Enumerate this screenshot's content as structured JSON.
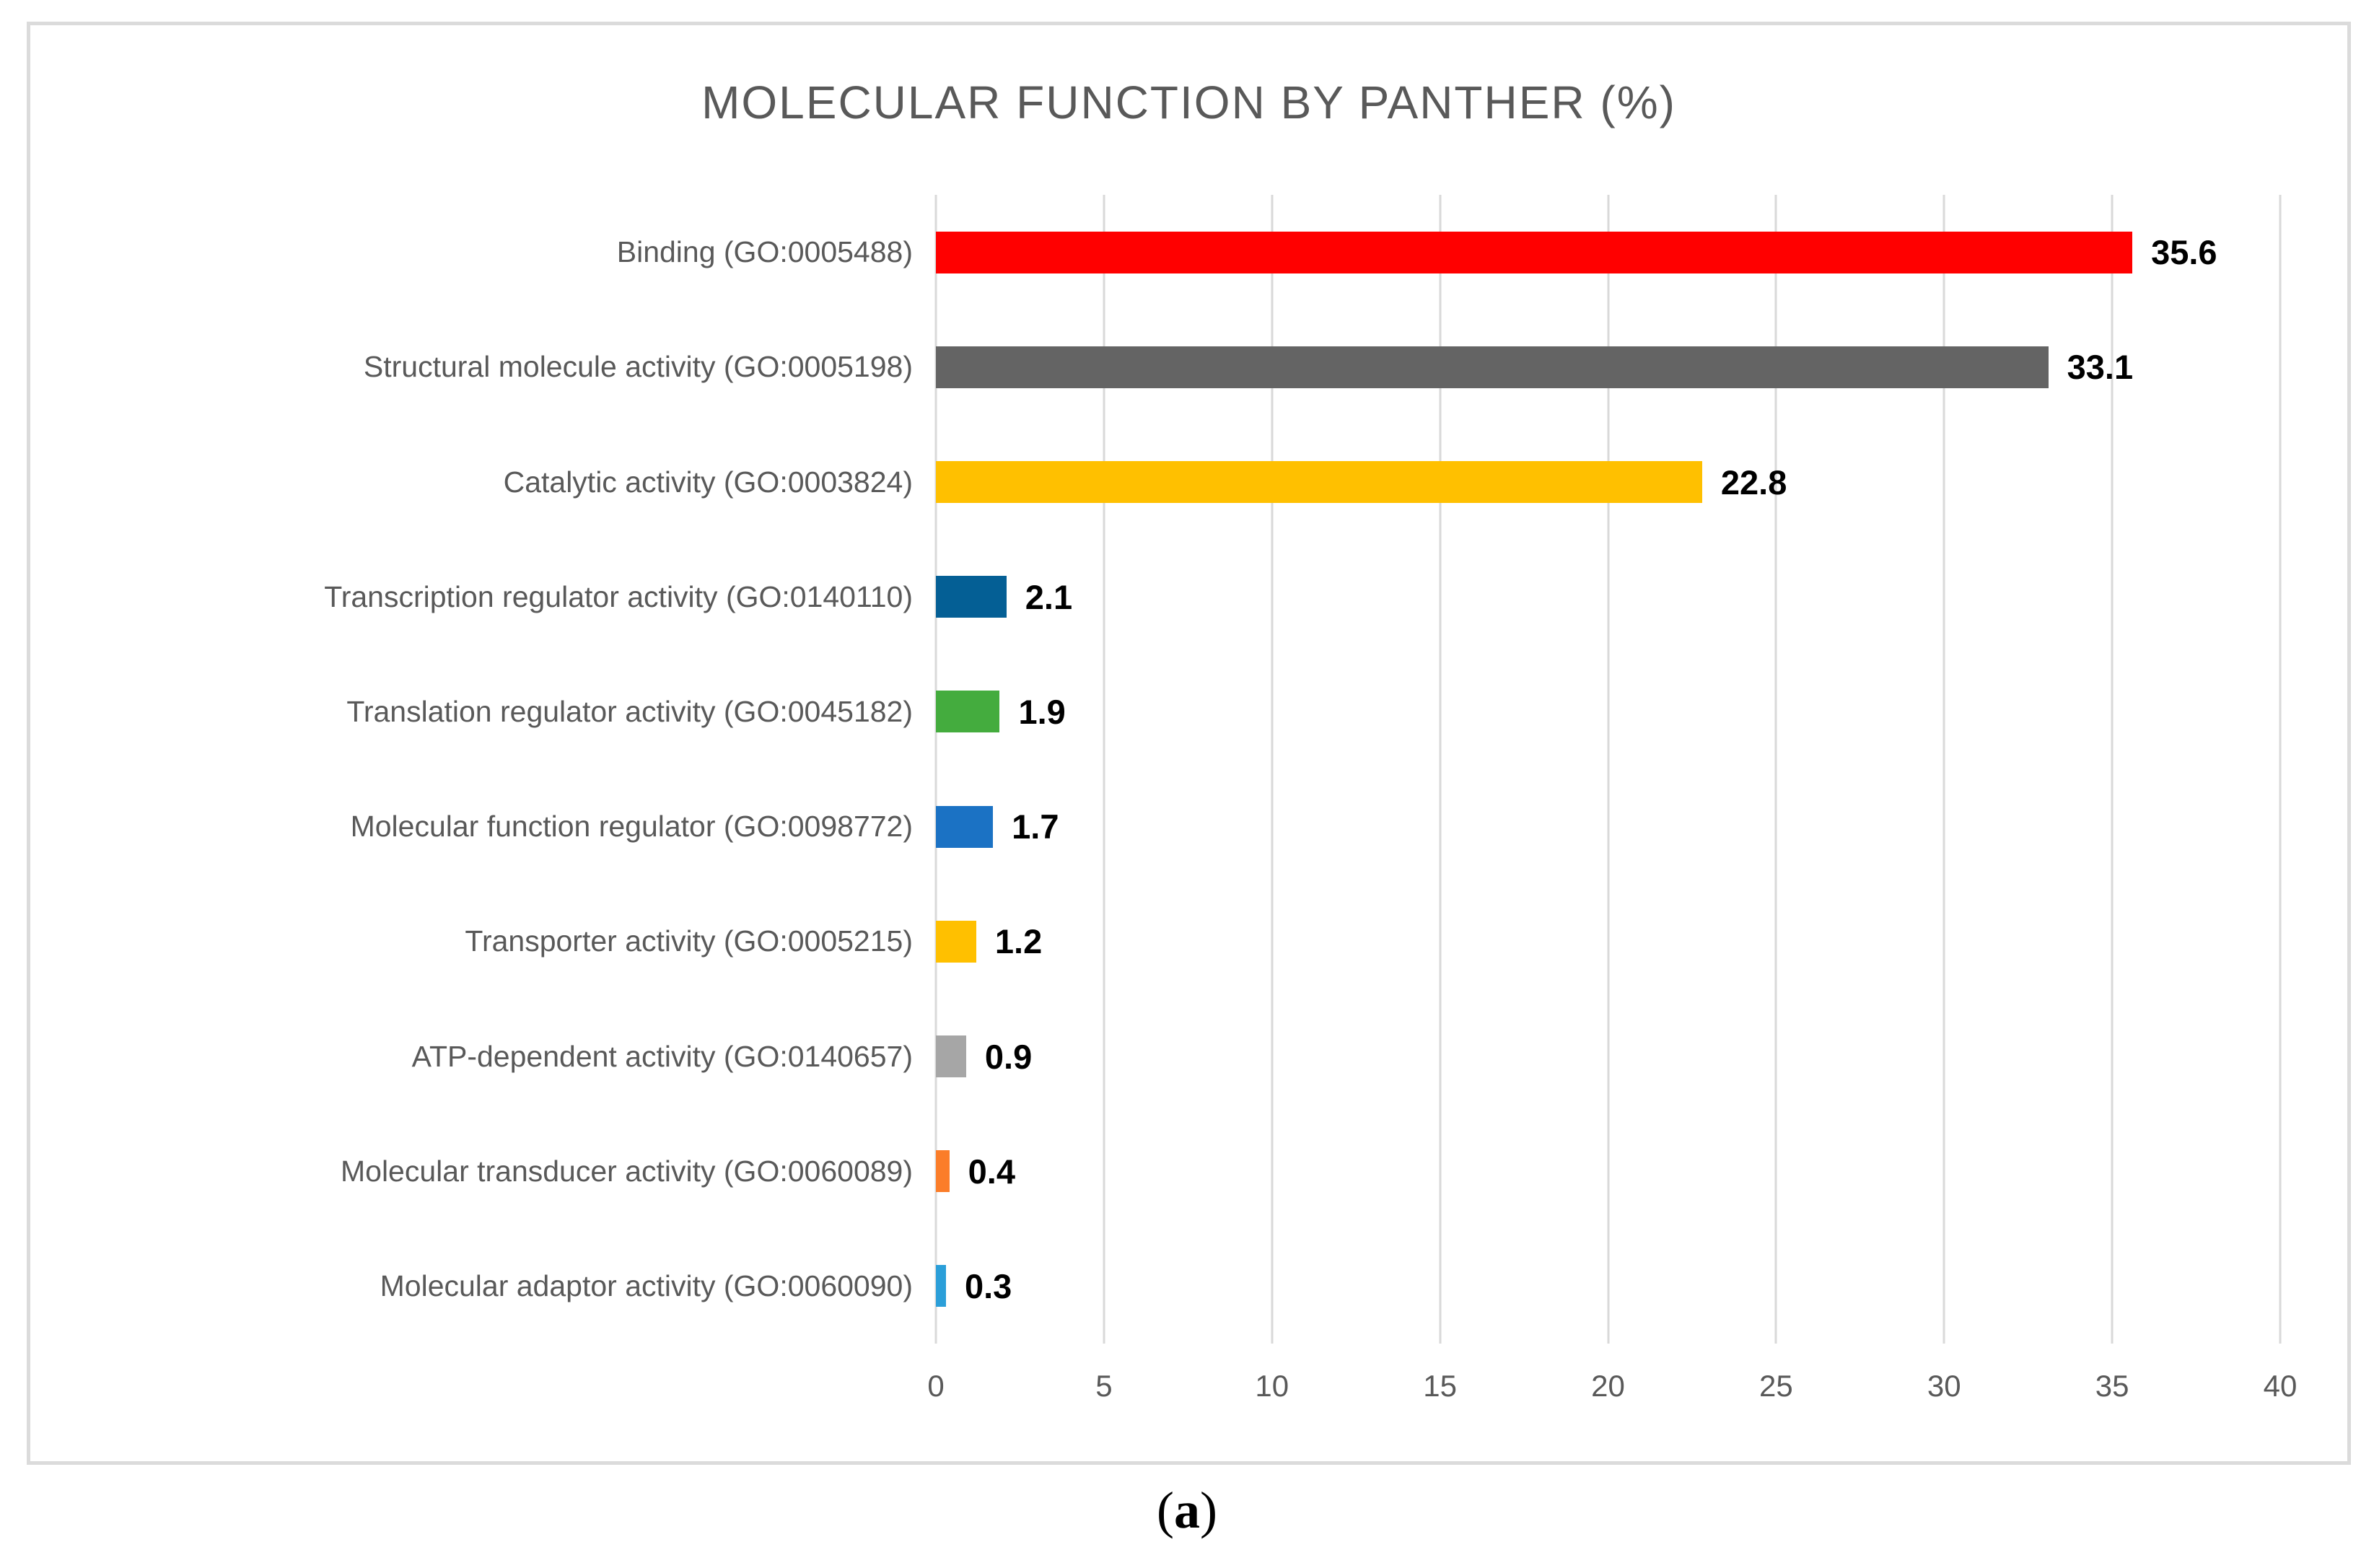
{
  "chart_data": {
    "type": "bar",
    "orientation": "horizontal",
    "title": "MOLECULAR FUNCTION BY PANTHER (%)",
    "categories": [
      "Binding (GO:0005488)",
      "Structural molecule activity (GO:0005198)",
      "Catalytic activity (GO:0003824)",
      "Transcription regulator activity (GO:0140110)",
      "Translation regulator activity (GO:0045182)",
      "Molecular function regulator (GO:0098772)",
      "Transporter activity (GO:0005215)",
      "ATP-dependent activity (GO:0140657)",
      "Molecular transducer activity (GO:0060089)",
      "Molecular adaptor activity (GO:0060090)"
    ],
    "values": [
      35.6,
      33.1,
      22.8,
      2.1,
      1.9,
      1.7,
      1.2,
      0.9,
      0.4,
      0.3
    ],
    "value_labels": [
      "35.6",
      "33.1",
      "22.8",
      "2.1",
      "1.9",
      "1.7",
      "1.2",
      "0.9",
      "0.4",
      "0.3"
    ],
    "bar_colors": [
      "#FF0000",
      "#646464",
      "#FFC000",
      "#045F95",
      "#44AC3E",
      "#1B72C4",
      "#FFC000",
      "#A6A6A6",
      "#FB7D29",
      "#2B9FD9"
    ],
    "xlabel": "",
    "ylabel": "",
    "xlim": [
      0,
      40
    ],
    "x_ticks": [
      0,
      5,
      10,
      15,
      20,
      25,
      30,
      35,
      40
    ],
    "grid": "vertical-on",
    "legend": "none"
  },
  "caption": {
    "prefix": "(",
    "letter": "a",
    "suffix": ")"
  },
  "colors": {
    "title_text": "#595959",
    "category_text": "#595959",
    "axis_text": "#595959",
    "value_text": "#000000",
    "gridline": "#D9D9D9",
    "panel_border": "#DBDBDB",
    "background": "#FFFFFF"
  }
}
